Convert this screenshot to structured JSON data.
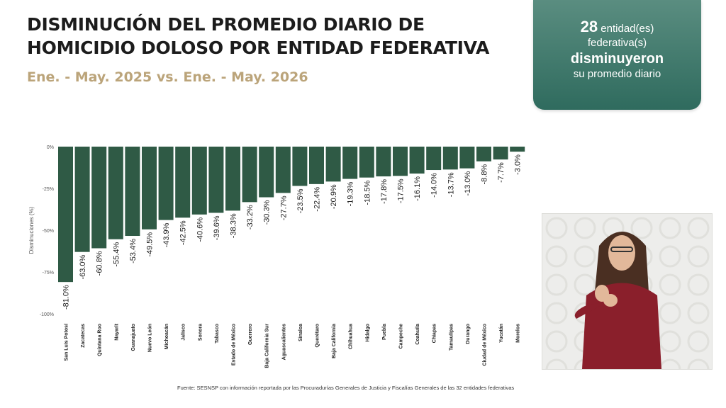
{
  "title": "DISMINUCIÓN DEL PROMEDIO DIARIO DE HOMICIDIO DOLOSO POR ENTIDAD FEDERATIVA",
  "subtitle": "Ene. - May. 2025 vs. Ene. - May. 2026",
  "callout": {
    "count": "28",
    "line1_rest": "entidad(es)",
    "line2": "federativa(s)",
    "line3": "disminuyeron",
    "line4": "su promedio diario"
  },
  "source": "Fuente: SESNSP con información reportada por las Procuradurías Generales de Justicia y Fiscalías Generales de las 32 entidades federativas",
  "colors": {
    "bar": "#2f5a45",
    "title": "#1c1c1c",
    "subtitle": "#bba47a",
    "callout": "#2f6b5e"
  },
  "video_panel": {
    "icon": "sign-language-interpreter-video"
  },
  "chart_data": {
    "type": "bar",
    "ylabel": "Disminuciones (%)",
    "ylim": [
      -100,
      0
    ],
    "yticks": [
      0,
      -25,
      -50,
      -75,
      -100
    ],
    "ytick_labels": [
      "0%",
      "-25%",
      "-50%",
      "-75%",
      "-100%"
    ],
    "categories": [
      "San Luis Potosí",
      "Zacatecas",
      "Quintana Roo",
      "Nayarit",
      "Guanajuato",
      "Nuevo León",
      "Michoacán",
      "Jalisco",
      "Sonora",
      "Tabasco",
      "Estado de México",
      "Guerrero",
      "Baja California Sur",
      "Aguascalientes",
      "Sinaloa",
      "Querétaro",
      "Baja California",
      "Chihuahua",
      "Hidalgo",
      "Puebla",
      "Campeche",
      "Coahuila",
      "Chiapas",
      "Tamaulipas",
      "Durango",
      "Ciudad de México",
      "Yucatán",
      "Morelos"
    ],
    "values": [
      -81.0,
      -63.0,
      -60.8,
      -55.4,
      -53.4,
      -49.5,
      -43.9,
      -42.5,
      -40.6,
      -39.6,
      -38.3,
      -33.2,
      -30.3,
      -27.7,
      -23.5,
      -22.4,
      -20.9,
      -19.3,
      -18.5,
      -17.8,
      -17.5,
      -16.1,
      -14.0,
      -13.7,
      -13.0,
      -8.8,
      -7.7,
      -3.0
    ],
    "labels": [
      "-81.0%",
      "-63.0%",
      "-60.8%",
      "-55.4%",
      "-53.4%",
      "-49.5%",
      "-43.9%",
      "-42.5%",
      "-40.6%",
      "-39.6%",
      "-38.3%",
      "-33.2%",
      "-30.3%",
      "-27.7%",
      "-23.5%",
      "-22.4%",
      "-20.9%",
      "-19.3%",
      "-18.5%",
      "-17.8%",
      "-17.5%",
      "-16.1%",
      "-14.0%",
      "-13.7%",
      "-13.0%",
      "-8.8%",
      "-7.7%",
      "-3.0%"
    ],
    "grid": false,
    "legend": "none"
  }
}
